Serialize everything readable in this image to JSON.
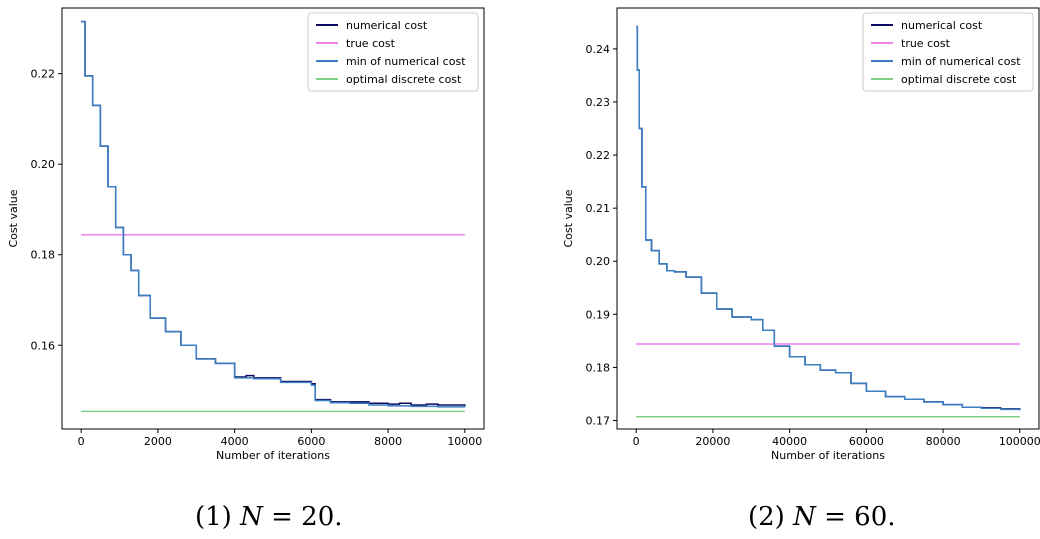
{
  "captions": [
    {
      "prefix": "(1) ",
      "var": "N",
      "rest": " = 20."
    },
    {
      "prefix": "(2) ",
      "var": "N",
      "rest": " = 60."
    }
  ],
  "chart_data": [
    {
      "type": "line",
      "xlabel": "Number of iterations",
      "ylabel": "Cost value",
      "xlim": [
        -500,
        10500
      ],
      "ylim": [
        0.1415,
        0.2345
      ],
      "xticks": [
        0,
        2000,
        4000,
        6000,
        8000,
        10000
      ],
      "xtick_labels": [
        "0",
        "2000",
        "4000",
        "6000",
        "8000",
        "10000"
      ],
      "yticks": [
        0.16,
        0.18,
        0.2,
        0.22
      ],
      "ytick_labels": [
        "0.16",
        "0.18",
        "0.20",
        "0.22"
      ],
      "legend_position": "top-right",
      "series": [
        {
          "name": "numerical cost",
          "color": "#0b0b5e",
          "x": [
            0,
            100,
            300,
            500,
            700,
            900,
            1100,
            1300,
            1500,
            1800,
            2200,
            2600,
            3000,
            3500,
            4000,
            4300,
            4500,
            5200,
            6000,
            6100,
            6500,
            7000,
            7500,
            8000,
            8300,
            8600,
            9000,
            9300,
            9600,
            10000
          ],
          "y": [
            0.2315,
            0.2195,
            0.213,
            0.204,
            0.195,
            0.186,
            0.18,
            0.1765,
            0.171,
            0.166,
            0.163,
            0.16,
            0.157,
            0.156,
            0.153,
            0.1533,
            0.1528,
            0.152,
            0.1515,
            0.148,
            0.1475,
            0.1475,
            0.1472,
            0.147,
            0.1472,
            0.1468,
            0.147,
            0.1468,
            0.1468,
            0.1466
          ]
        },
        {
          "name": "true cost",
          "color": "#ee82ee",
          "x": [
            0,
            10000
          ],
          "y": [
            0.1844,
            0.1844
          ]
        },
        {
          "name": "min of numerical cost",
          "color": "#3a7ec4",
          "x": [
            0,
            100,
            300,
            500,
            700,
            900,
            1100,
            1300,
            1500,
            1800,
            2200,
            2600,
            3000,
            3500,
            4000,
            4500,
            5200,
            6000,
            6100,
            6500,
            7000,
            7500,
            8000,
            8600,
            9300,
            10000
          ],
          "y": [
            0.2315,
            0.2195,
            0.213,
            0.204,
            0.195,
            0.186,
            0.18,
            0.1765,
            0.171,
            0.166,
            0.163,
            0.16,
            0.157,
            0.156,
            0.1528,
            0.1526,
            0.1518,
            0.1512,
            0.1478,
            0.1473,
            0.1472,
            0.1468,
            0.1466,
            0.1465,
            0.1464,
            0.1463
          ]
        },
        {
          "name": "optimal discrete cost",
          "color": "#7fcf86",
          "x": [
            0,
            10000
          ],
          "y": [
            0.1454,
            0.1454
          ]
        }
      ]
    },
    {
      "type": "line",
      "xlabel": "Number of iterations",
      "ylabel": "Cost value",
      "xlim": [
        -5000,
        105000
      ],
      "ylim": [
        0.1684,
        0.2477
      ],
      "xticks": [
        0,
        20000,
        40000,
        60000,
        80000,
        100000
      ],
      "xtick_labels": [
        "0",
        "20000",
        "40000",
        "60000",
        "80000",
        "100000"
      ],
      "yticks": [
        0.17,
        0.18,
        0.19,
        0.2,
        0.21,
        0.22,
        0.23,
        0.24
      ],
      "ytick_labels": [
        "0.17",
        "0.18",
        "0.19",
        "0.20",
        "0.21",
        "0.22",
        "0.23",
        "0.24"
      ],
      "legend_position": "top-right",
      "series": [
        {
          "name": "numerical cost",
          "color": "#0b0b5e",
          "x": [
            0,
            300,
            800,
            1500,
            2500,
            4000,
            6000,
            8000,
            10000,
            13000,
            17000,
            21000,
            25000,
            30000,
            33000,
            36000,
            40000,
            44000,
            48000,
            52000,
            56000,
            60000,
            65000,
            70000,
            75000,
            80000,
            85000,
            90000,
            95000,
            100000
          ],
          "y": [
            0.2442,
            0.236,
            0.225,
            0.214,
            0.204,
            0.202,
            0.1995,
            0.1982,
            0.198,
            0.197,
            0.194,
            0.191,
            0.1895,
            0.189,
            0.187,
            0.184,
            0.182,
            0.1805,
            0.1795,
            0.179,
            0.177,
            0.1755,
            0.1745,
            0.174,
            0.1735,
            0.173,
            0.1725,
            0.1724,
            0.1722,
            0.172
          ]
        },
        {
          "name": "true cost",
          "color": "#ee82ee",
          "x": [
            0,
            100000
          ],
          "y": [
            0.1844,
            0.1844
          ]
        },
        {
          "name": "min of numerical cost",
          "color": "#3a7ec4",
          "x": [
            0,
            300,
            800,
            1500,
            2500,
            4000,
            6000,
            8000,
            10000,
            13000,
            17000,
            21000,
            25000,
            30000,
            33000,
            36000,
            40000,
            44000,
            48000,
            52000,
            56000,
            60000,
            65000,
            70000,
            75000,
            80000,
            85000,
            90000,
            95000,
            100000
          ],
          "y": [
            0.2442,
            0.236,
            0.225,
            0.214,
            0.204,
            0.202,
            0.1995,
            0.1982,
            0.198,
            0.197,
            0.194,
            0.191,
            0.1895,
            0.189,
            0.187,
            0.184,
            0.182,
            0.1805,
            0.1795,
            0.179,
            0.177,
            0.1755,
            0.1745,
            0.174,
            0.1735,
            0.173,
            0.1725,
            0.1723,
            0.1721,
            0.1719
          ]
        },
        {
          "name": "optimal discrete cost",
          "color": "#7fcf86",
          "x": [
            0,
            100000
          ],
          "y": [
            0.1707,
            0.1707
          ]
        }
      ]
    }
  ]
}
